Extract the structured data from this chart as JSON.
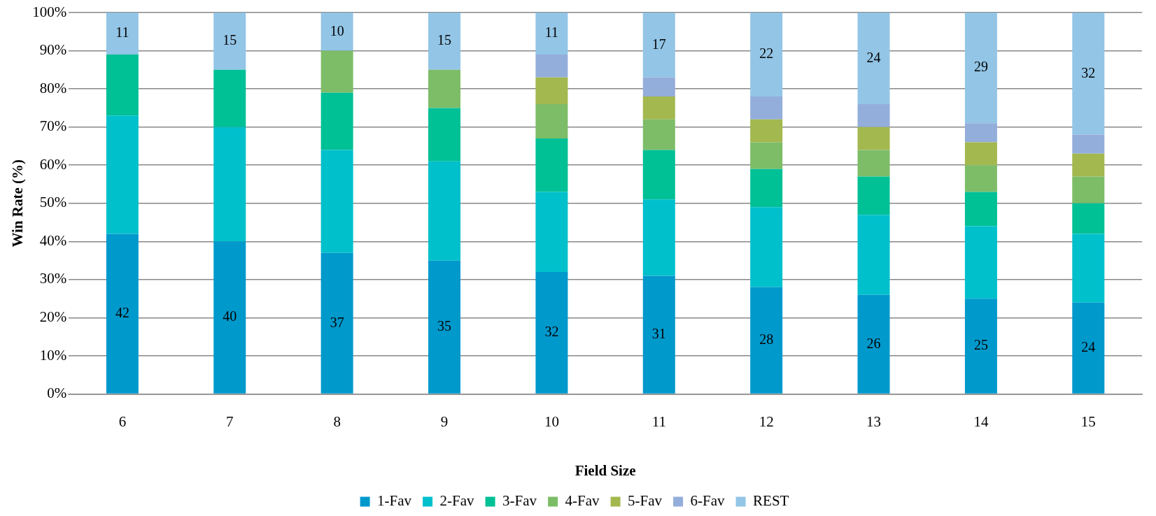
{
  "chart_data": {
    "type": "bar",
    "stacked": true,
    "xlabel": "Field Size",
    "ylabel": "Win Rate (%)",
    "categories": [
      "6",
      "7",
      "8",
      "9",
      "10",
      "11",
      "12",
      "13",
      "14",
      "15"
    ],
    "series": [
      {
        "name": "1-Fav",
        "color": "#0099cc",
        "values": [
          42,
          40,
          37,
          35,
          32,
          31,
          28,
          26,
          25,
          24
        ],
        "value_labels": [
          "42",
          "40",
          "37",
          "35",
          "32",
          "31",
          "28",
          "26",
          "25",
          "24"
        ]
      },
      {
        "name": "2-Fav",
        "color": "#00c0cc",
        "values": [
          31,
          30,
          27,
          26,
          21,
          20,
          21,
          21,
          19,
          18
        ]
      },
      {
        "name": "3-Fav",
        "color": "#00c096",
        "values": [
          16,
          15,
          15,
          14,
          14,
          13,
          10,
          10,
          9,
          8
        ]
      },
      {
        "name": "4-Fav",
        "color": "#7dbd68",
        "values": [
          null,
          null,
          11,
          10,
          9,
          8,
          7,
          7,
          7,
          7
        ]
      },
      {
        "name": "5-Fav",
        "color": "#a3b84e",
        "values": [
          null,
          null,
          null,
          null,
          7,
          6,
          6,
          6,
          6,
          6
        ]
      },
      {
        "name": "6-Fav",
        "color": "#94aedb",
        "values": [
          null,
          null,
          null,
          null,
          6,
          5,
          6,
          6,
          5,
          5
        ]
      },
      {
        "name": "REST",
        "color": "#93c5e6",
        "values": [
          11,
          15,
          10,
          15,
          11,
          17,
          22,
          24,
          29,
          32
        ],
        "value_labels": [
          "11",
          "15",
          "10",
          "15",
          "11",
          "17",
          "22",
          "24",
          "29",
          "32"
        ]
      }
    ],
    "ylim": [
      0,
      100
    ],
    "yticks": [
      {
        "value": 0,
        "label": "0%"
      },
      {
        "value": 10,
        "label": "10%"
      },
      {
        "value": 20,
        "label": "20%"
      },
      {
        "value": 30,
        "label": "30%"
      },
      {
        "value": 40,
        "label": "40%"
      },
      {
        "value": 50,
        "label": "50%"
      },
      {
        "value": 60,
        "label": "60%"
      },
      {
        "value": 70,
        "label": "70%"
      },
      {
        "value": 80,
        "label": "80%"
      },
      {
        "value": 90,
        "label": "90%"
      },
      {
        "value": 100,
        "label": "100%"
      }
    ],
    "grid": "y",
    "legend": "bottom"
  }
}
